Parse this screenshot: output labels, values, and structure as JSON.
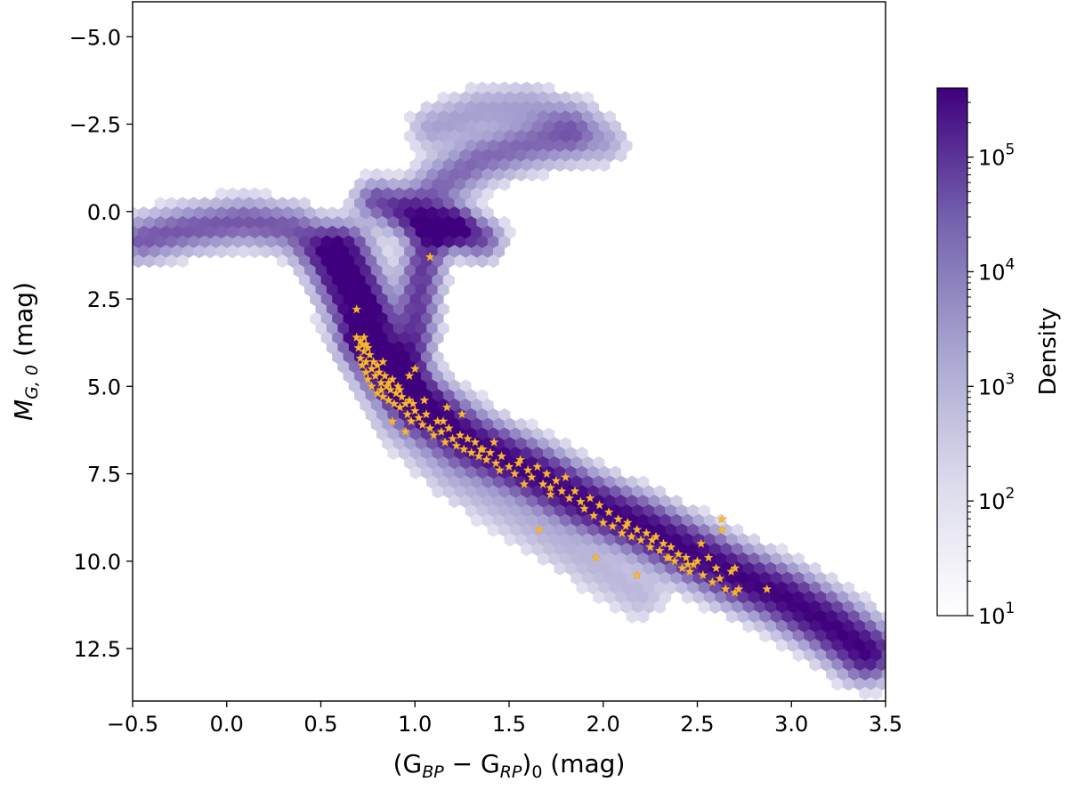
{
  "chart_data": {
    "type": "scatter",
    "title": "",
    "xlabel": {
      "pre": "(G",
      "sub1": "BP",
      "mid": " − G",
      "sub2": "RP",
      "post": ")",
      "sub3": "0",
      "unit": " (mag)"
    },
    "ylabel": {
      "pre": "M",
      "sub": "G, 0",
      "unit": " (mag)"
    },
    "xlim": [
      -0.5,
      3.5
    ],
    "ylim": [
      14.0,
      -6.0
    ],
    "x_ticks": [
      -0.5,
      0.0,
      0.5,
      1.0,
      1.5,
      2.0,
      2.5,
      3.0,
      3.5
    ],
    "x_tick_labels": [
      "−0.5",
      "0.0",
      "0.5",
      "1.0",
      "1.5",
      "2.0",
      "2.5",
      "3.0",
      "3.5"
    ],
    "y_ticks": [
      -5.0,
      -2.5,
      0.0,
      2.5,
      5.0,
      7.5,
      10.0,
      12.5
    ],
    "y_tick_labels": [
      "−5.0",
      "−2.5",
      "0.0",
      "2.5",
      "5.0",
      "7.5",
      "10.0",
      "12.5"
    ],
    "grid": false,
    "background": {
      "kind": "hexbin-density",
      "cmap_low": "#ffffff",
      "cmap_high": "#3f007d",
      "components": [
        {
          "path": [
            [
              -0.45,
              0.8
            ],
            [
              -0.2,
              0.5
            ],
            [
              0.1,
              0.3
            ],
            [
              0.35,
              0.5
            ],
            [
              0.55,
              1.3
            ],
            [
              0.68,
              2.4
            ],
            [
              0.75,
              3.2
            ]
          ],
          "width": 0.5,
          "amp": 0.45
        },
        {
          "path": [
            [
              0.6,
              1.2
            ],
            [
              0.7,
              2.6
            ],
            [
              0.78,
              3.8
            ],
            [
              0.9,
              4.8
            ],
            [
              1.05,
              5.6
            ],
            [
              1.3,
              6.6
            ],
            [
              1.6,
              7.4
            ],
            [
              1.9,
              8.3
            ],
            [
              2.2,
              9.0
            ],
            [
              2.45,
              9.7
            ],
            [
              2.7,
              10.4
            ],
            [
              2.95,
              11.0
            ],
            [
              3.2,
              11.8
            ],
            [
              3.4,
              12.6
            ]
          ],
          "width": 0.6,
          "amp": 1.0
        },
        {
          "path": [
            [
              0.72,
              3.6
            ],
            [
              0.8,
              4.2
            ],
            [
              0.9,
              4.9
            ],
            [
              1.05,
              5.6
            ]
          ],
          "width": 0.4,
          "amp": 0.55
        },
        {
          "path": [
            [
              0.95,
              4.6
            ],
            [
              1.0,
              3.5
            ],
            [
              1.02,
              2.4
            ],
            [
              1.05,
              1.4
            ],
            [
              1.1,
              0.6
            ],
            [
              1.2,
              0.4
            ]
          ],
          "width": 0.42,
          "amp": 0.6
        },
        {
          "path": [
            [
              0.8,
              -0.3
            ],
            [
              0.95,
              0.0
            ],
            [
              1.1,
              0.3
            ],
            [
              1.25,
              0.6
            ],
            [
              1.35,
              0.8
            ]
          ],
          "width": 0.45,
          "amp": 0.5
        },
        {
          "path": [
            [
              1.0,
              0.0
            ],
            [
              1.15,
              -0.8
            ],
            [
              1.35,
              -1.5
            ],
            [
              1.6,
              -1.9
            ],
            [
              1.8,
              -2.1
            ]
          ],
          "width": 0.55,
          "amp": 0.38
        },
        {
          "path": [
            [
              1.1,
              -2.4
            ],
            [
              1.35,
              -2.9
            ],
            [
              1.6,
              -3.0
            ],
            [
              1.85,
              -2.6
            ],
            [
              2.0,
              -2.0
            ]
          ],
          "width": 0.5,
          "amp": 0.2
        },
        {
          "path": [
            [
              0.9,
              6.0
            ],
            [
              1.2,
              7.6
            ],
            [
              1.5,
              8.6
            ],
            [
              1.9,
              10.0
            ],
            [
              2.2,
              11.0
            ]
          ],
          "width": 0.55,
          "amp": 0.12
        }
      ],
      "hotspot": {
        "x": 1.15,
        "y": 0.55,
        "rx": 0.1,
        "ry": 0.28,
        "amp": 0.55
      }
    },
    "series": [
      {
        "marker": "star",
        "color": "#f7b731",
        "x": [
          1.08,
          0.69,
          0.69,
          0.7,
          0.71,
          0.71,
          0.72,
          0.72,
          0.73,
          0.73,
          0.74,
          0.74,
          0.75,
          0.75,
          0.76,
          0.77,
          0.77,
          0.78,
          0.79,
          0.8,
          0.8,
          0.81,
          0.82,
          0.83,
          0.84,
          0.85,
          0.86,
          0.87,
          0.88,
          0.89,
          0.9,
          0.91,
          0.92,
          0.93,
          0.95,
          0.96,
          0.97,
          0.98,
          1.0,
          1.02,
          1.04,
          1.06,
          1.08,
          1.1,
          1.12,
          1.14,
          1.16,
          1.18,
          1.2,
          1.22,
          1.24,
          1.26,
          1.28,
          1.3,
          1.32,
          1.34,
          1.36,
          1.38,
          1.4,
          1.43,
          1.46,
          1.5,
          1.53,
          1.56,
          1.6,
          1.62,
          1.65,
          1.68,
          1.7,
          1.72,
          1.75,
          1.78,
          1.8,
          1.82,
          1.85,
          1.88,
          1.9,
          1.93,
          1.95,
          1.98,
          2.0,
          2.03,
          2.05,
          2.08,
          2.1,
          2.13,
          2.15,
          2.18,
          2.2,
          2.23,
          2.25,
          2.28,
          2.3,
          2.32,
          2.34,
          2.36,
          2.38,
          2.4,
          2.42,
          2.44,
          2.46,
          2.48,
          2.5,
          2.53,
          2.56,
          2.58,
          2.6,
          2.62,
          2.65,
          2.68,
          2.7,
          2.72,
          2.87,
          2.63,
          2.63,
          1.66,
          1.96,
          2.18,
          1.0,
          1.05,
          0.95,
          0.88,
          1.15,
          1.35,
          1.55,
          1.25,
          0.99,
          0.92,
          0.86,
          0.83,
          0.74,
          1.17,
          1.42,
          1.58,
          1.72,
          2.12,
          2.26,
          2.35,
          2.45,
          2.52,
          2.7,
          0.82,
          0.97,
          1.45
        ],
        "y": [
          1.3,
          2.8,
          3.6,
          3.9,
          3.7,
          4.2,
          3.8,
          4.4,
          4.0,
          3.6,
          4.3,
          4.6,
          3.9,
          4.8,
          4.1,
          4.5,
          5.0,
          4.3,
          4.7,
          4.4,
          5.2,
          4.6,
          4.9,
          5.3,
          4.7,
          5.0,
          5.4,
          5.1,
          4.8,
          5.5,
          5.2,
          5.0,
          5.6,
          5.3,
          5.5,
          5.8,
          5.4,
          6.0,
          5.7,
          5.9,
          6.1,
          5.8,
          6.2,
          6.4,
          6.0,
          6.3,
          6.6,
          6.2,
          6.5,
          6.7,
          6.4,
          6.8,
          6.5,
          6.9,
          6.6,
          7.0,
          6.8,
          7.1,
          6.9,
          7.2,
          7.0,
          7.3,
          7.5,
          7.1,
          7.4,
          7.6,
          7.3,
          7.8,
          7.5,
          7.9,
          7.7,
          8.0,
          7.6,
          8.2,
          8.0,
          8.3,
          8.5,
          8.2,
          8.7,
          8.4,
          8.9,
          8.6,
          9.0,
          8.8,
          9.2,
          8.9,
          9.3,
          9.1,
          9.4,
          9.2,
          9.6,
          9.3,
          9.7,
          9.5,
          9.9,
          9.6,
          10.0,
          9.8,
          10.2,
          9.9,
          10.3,
          10.1,
          10.0,
          10.4,
          9.9,
          10.6,
          10.2,
          10.5,
          10.8,
          10.3,
          10.9,
          10.8,
          10.8,
          8.8,
          9.1,
          9.1,
          9.9,
          10.4,
          4.5,
          5.4,
          6.3,
          6.0,
          6.0,
          6.8,
          7.2,
          5.8,
          5.5,
          5.1,
          4.9,
          4.3,
          3.8,
          5.6,
          6.6,
          7.8,
          8.1,
          9.0,
          9.4,
          9.9,
          10.1,
          9.5,
          10.2,
          5.1,
          4.7,
          7.4
        ]
      }
    ],
    "colorbar": {
      "label": "Density",
      "scale": "log",
      "range": [
        10,
        400000
      ],
      "ticks": [
        10,
        100,
        1000,
        10000,
        100000
      ],
      "tick_labels": [
        {
          "base": "10",
          "exp": "1"
        },
        {
          "base": "10",
          "exp": "2"
        },
        {
          "base": "10",
          "exp": "3"
        },
        {
          "base": "10",
          "exp": "4"
        },
        {
          "base": "10",
          "exp": "5"
        }
      ]
    }
  }
}
